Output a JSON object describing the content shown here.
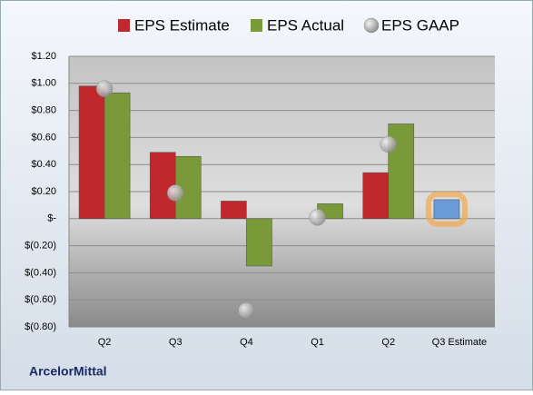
{
  "chart_data": {
    "type": "bar",
    "categories": [
      "Q2",
      "Q3",
      "Q4",
      "Q1",
      "Q2",
      "Q3 Estimate"
    ],
    "series": [
      {
        "name": "EPS Estimate",
        "color": "#c0282d",
        "values": [
          0.98,
          0.49,
          0.13,
          null,
          0.34,
          0.14
        ],
        "colors": [
          "#c0282d",
          "#c0282d",
          "#c0282d",
          "#c0282d",
          "#c0282d",
          "#6a9ad8"
        ]
      },
      {
        "name": "EPS Actual",
        "color": "#7a9a3a",
        "values": [
          0.93,
          0.46,
          -0.35,
          0.11,
          0.7,
          null
        ]
      },
      {
        "name": "EPS GAAP",
        "color": "#a8a8a8",
        "marker": "circle",
        "values": [
          0.96,
          0.19,
          -0.68,
          0.01,
          0.55,
          null
        ]
      }
    ],
    "ylim": [
      -0.8,
      1.2
    ],
    "yticks": [
      {
        "value": -0.8,
        "label": "$(0.80)"
      },
      {
        "value": -0.6,
        "label": "$(0.60)"
      },
      {
        "value": -0.4,
        "label": "$(0.40)"
      },
      {
        "value": -0.2,
        "label": "$(0.20)"
      },
      {
        "value": 0,
        "label": "$-"
      },
      {
        "value": 0.2,
        "label": "$0.20"
      },
      {
        "value": 0.4,
        "label": "$0.40"
      },
      {
        "value": 0.6,
        "label": "$0.60"
      },
      {
        "value": 0.8,
        "label": "$0.80"
      },
      {
        "value": 1.0,
        "label": "$1.00"
      },
      {
        "value": 1.2,
        "label": "$1.20"
      }
    ],
    "grid": true,
    "legend": "top",
    "footer": "ArcelorMittal"
  }
}
